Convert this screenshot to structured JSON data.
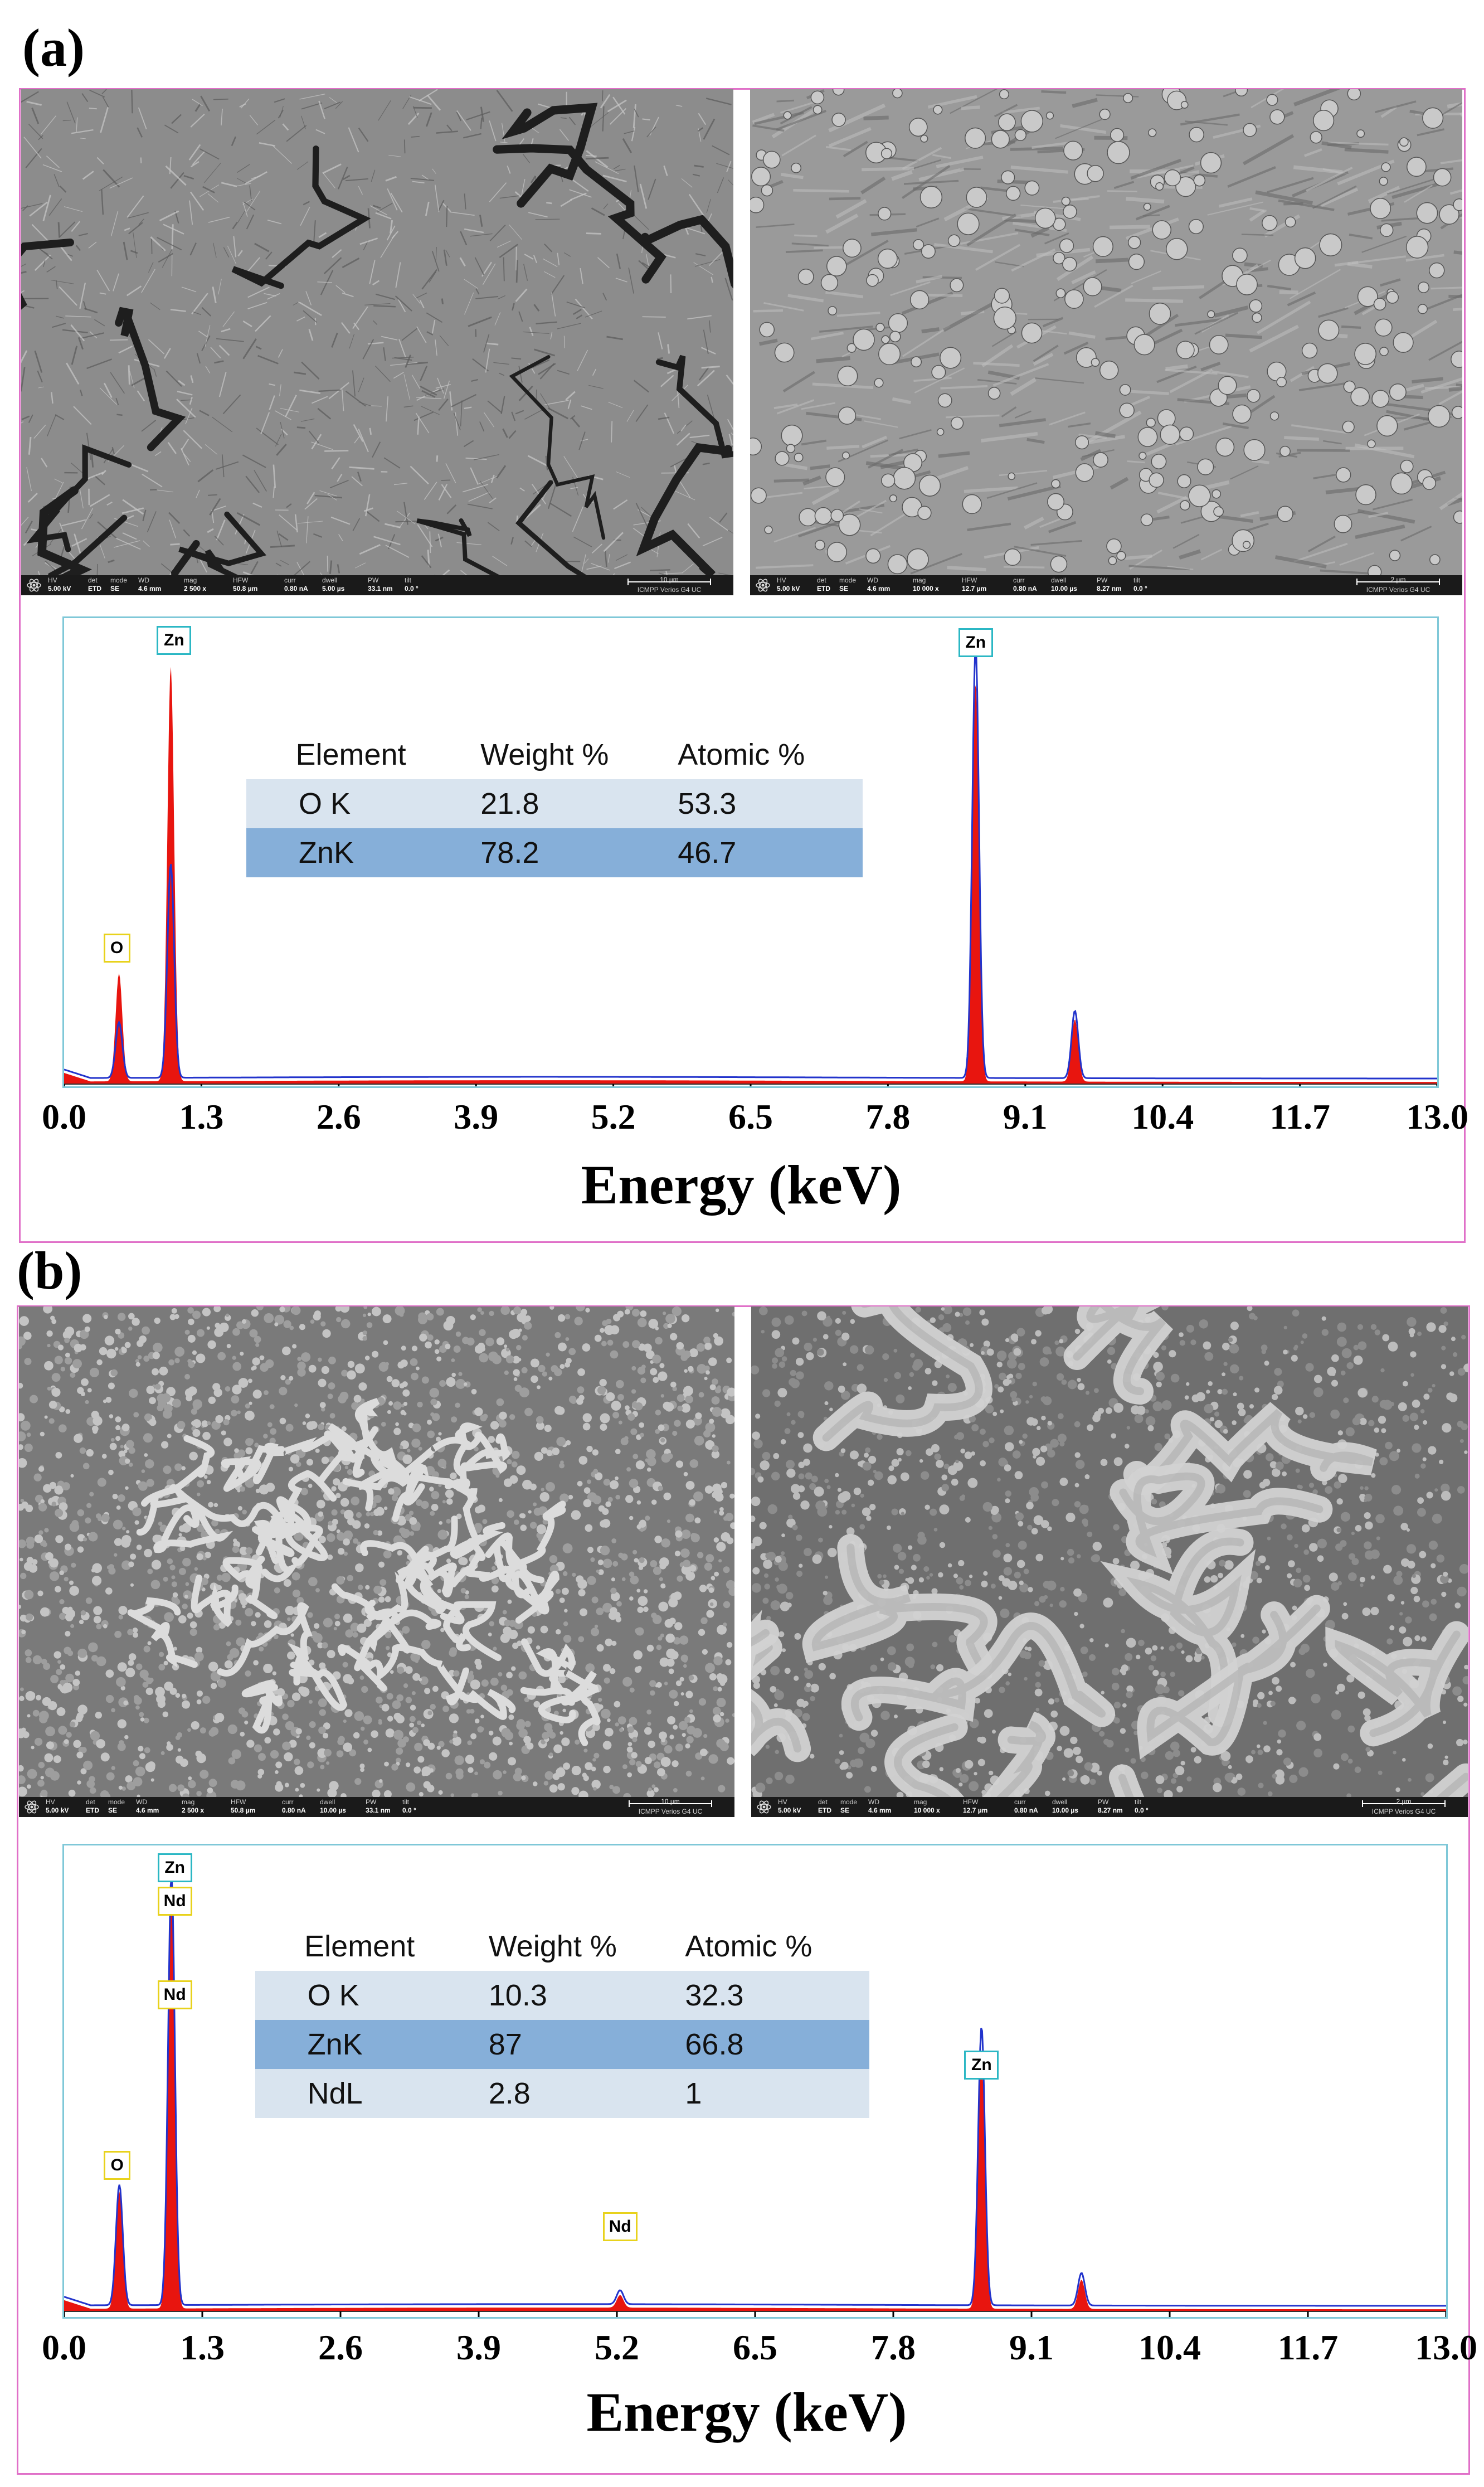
{
  "panels": [
    {
      "label": "(a)",
      "sem_images": [
        {
          "hv": "5.00 kV",
          "det": "ETD",
          "mode": "SE",
          "wd": "4.6 mm",
          "mag": "2 500 x",
          "hfw": "50.8 µm",
          "curr": "0.80 nA",
          "dwell": "5.00 µs",
          "pw": "33.1 nm",
          "tilt": "0.0 °",
          "scale": "10 µm",
          "instrument": "ICMPP Verios G4 UC"
        },
        {
          "hv": "5.00 kV",
          "det": "ETD",
          "mode": "SE",
          "wd": "4.6 mm",
          "mag": "10 000 x",
          "hfw": "12.7 µm",
          "curr": "0.80 nA",
          "dwell": "10.00 µs",
          "pw": "8.27 nm",
          "tilt": "0.0 °",
          "scale": "2 µm",
          "instrument": "ICMPP Verios G4 UC"
        }
      ],
      "table": {
        "headers": [
          "Element",
          "Weight %",
          "Atomic %"
        ],
        "rows": [
          [
            "O K",
            "21.8",
            "53.3"
          ],
          [
            "ZnK",
            "78.2",
            "46.7"
          ]
        ]
      },
      "peak_labels": [
        {
          "text": "Zn",
          "energy": 1.01,
          "color": "#2bb7c4"
        },
        {
          "text": "O",
          "energy": 0.52,
          "color": "#e8d21c"
        },
        {
          "text": "Zn",
          "energy": 8.63,
          "color": "#2bb7c4"
        }
      ]
    },
    {
      "label": "(b)",
      "sem_images": [
        {
          "hv": "5.00 kV",
          "det": "ETD",
          "mode": "SE",
          "wd": "4.6 mm",
          "mag": "2 500 x",
          "hfw": "50.8 µm",
          "curr": "0.80 nA",
          "dwell": "10.00 µs",
          "pw": "33.1 nm",
          "tilt": "0.0 °",
          "scale": "10 µm",
          "instrument": "ICMPP Verios G4 UC"
        },
        {
          "hv": "5.00 kV",
          "det": "ETD",
          "mode": "SE",
          "wd": "4.6 mm",
          "mag": "10 000 x",
          "hfw": "12.7 µm",
          "curr": "0.80 nA",
          "dwell": "10.00 µs",
          "pw": "8.27 nm",
          "tilt": "0.0 °",
          "scale": "2 µm",
          "instrument": "ICMPP Verios G4 UC"
        }
      ],
      "table": {
        "headers": [
          "Element",
          "Weight %",
          "Atomic %"
        ],
        "rows": [
          [
            "O K",
            "10.3",
            "32.3"
          ],
          [
            "ZnK",
            "87",
            "66.8"
          ],
          [
            "NdL",
            "2.8",
            "1"
          ]
        ]
      },
      "peak_labels": [
        {
          "text": "Zn",
          "energy": 1.01,
          "color": "#2bb7c4"
        },
        {
          "text": "Nd",
          "energy": 1.01,
          "color": "#e8d21c"
        },
        {
          "text": "Nd",
          "energy": 1.01,
          "color": "#e8d21c"
        },
        {
          "text": "O",
          "energy": 0.52,
          "color": "#e8d21c"
        },
        {
          "text": "Nd",
          "energy": 5.23,
          "color": "#e8d21c"
        },
        {
          "text": "Zn",
          "energy": 8.63,
          "color": "#2bb7c4"
        }
      ]
    }
  ],
  "sem_field_keys": {
    "hv": "HV",
    "det": "det",
    "mode": "mode",
    "wd": "WD",
    "mag": "mag",
    "hfw": "HFW",
    "curr": "curr",
    "dwell": "dwell",
    "pw": "PW",
    "tilt": "tilt"
  },
  "chart_data": [
    {
      "type": "line",
      "panel": "(a)",
      "title": "",
      "xlabel": "Energy (keV)",
      "ylabel": "",
      "xlim": [
        0.0,
        13.0
      ],
      "xticks": [
        "0.0",
        "1.3",
        "2.6",
        "3.9",
        "5.2",
        "6.5",
        "7.8",
        "9.1",
        "10.4",
        "11.7",
        "13.0"
      ],
      "grid": false,
      "colors": {
        "fill": "#e8150f",
        "outline": "#2233cc"
      },
      "peaks": [
        {
          "label": "Zn L",
          "energy": 1.01,
          "rel_intensity": 1.0
        },
        {
          "label": "O K",
          "energy": 0.52,
          "rel_intensity": 0.26
        },
        {
          "label": "Zn Kα",
          "energy": 8.63,
          "rel_intensity": 0.96
        },
        {
          "label": "Zn Kβ",
          "energy": 9.57,
          "rel_intensity": 0.15
        }
      ]
    },
    {
      "type": "line",
      "panel": "(b)",
      "title": "",
      "xlabel": "Energy (keV)",
      "ylabel": "",
      "xlim": [
        0.0,
        13.0
      ],
      "xticks": [
        "0.0",
        "1.3",
        "2.6",
        "3.9",
        "5.2",
        "6.5",
        "7.8",
        "9.1",
        "10.4",
        "11.7",
        "13.0"
      ],
      "grid": false,
      "colors": {
        "fill": "#e8150f",
        "outline": "#2233cc"
      },
      "peaks": [
        {
          "label": "Zn L / Nd M",
          "energy": 1.01,
          "rel_intensity": 1.0
        },
        {
          "label": "O K",
          "energy": 0.52,
          "rel_intensity": 0.28
        },
        {
          "label": "Nd L",
          "energy": 5.23,
          "rel_intensity": 0.03
        },
        {
          "label": "Zn Kα",
          "energy": 8.63,
          "rel_intensity": 0.6
        },
        {
          "label": "Zn Kβ",
          "energy": 9.57,
          "rel_intensity": 0.07
        }
      ]
    }
  ]
}
